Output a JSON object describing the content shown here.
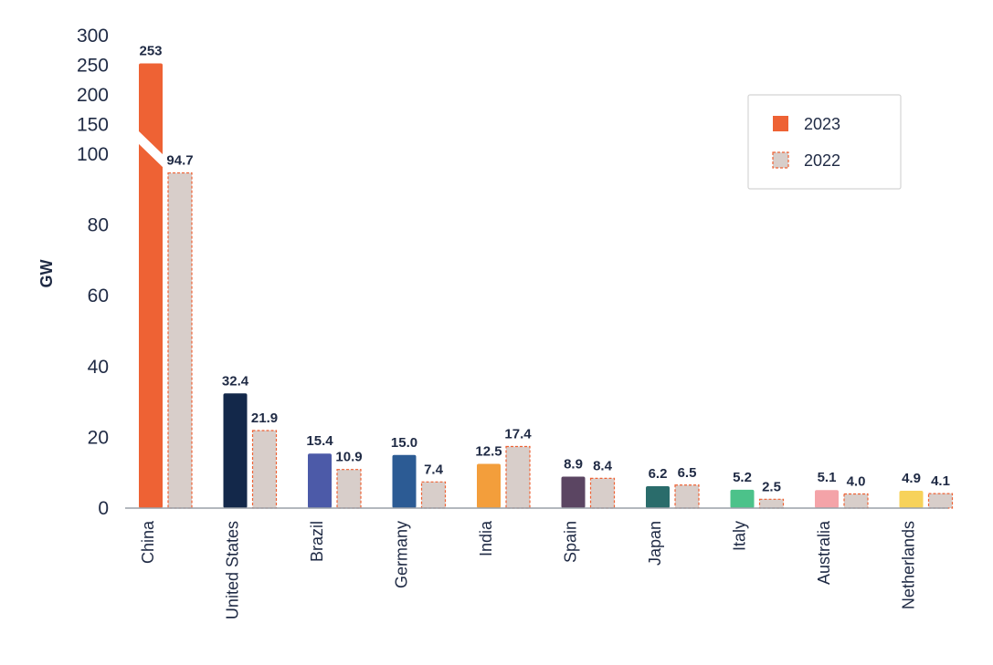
{
  "chart_data": {
    "type": "bar",
    "ylabel": "GW",
    "categories": [
      "China",
      "United States",
      "Brazil",
      "Germany",
      "India",
      "Spain",
      "Japan",
      "Italy",
      "Australia",
      "Netherlands"
    ],
    "series": [
      {
        "name": "2023",
        "values": [
          253,
          32.4,
          15.4,
          15.0,
          12.5,
          8.9,
          6.2,
          5.2,
          5.1,
          4.9
        ],
        "labels": [
          "253",
          "32.4",
          "15.4",
          "15.0",
          "12.5",
          "8.9",
          "6.2",
          "5.2",
          "5.1",
          "4.9"
        ],
        "colors": [
          "#ee6234",
          "#13284a",
          "#4c5aa8",
          "#2c5b94",
          "#f39e3b",
          "#5b4562",
          "#2a6c6b",
          "#4cc28a",
          "#f4a3a8",
          "#f7d25a"
        ]
      },
      {
        "name": "2022",
        "values": [
          94.7,
          21.9,
          10.9,
          7.4,
          17.4,
          8.4,
          6.5,
          2.5,
          4.0,
          4.1
        ],
        "labels": [
          "94.7",
          "21.9",
          "10.9",
          "7.4",
          "17.4",
          "8.4",
          "6.5",
          "2.5",
          "4.0",
          "4.1"
        ],
        "fill": "#d8ceca",
        "border": "#ee6234"
      }
    ],
    "ylim": [
      0,
      300
    ],
    "axis_break": {
      "from": 100,
      "to": 300
    },
    "yticks_lower": [
      "0",
      "20",
      "40",
      "60",
      "80",
      "100"
    ],
    "yticks_upper": [
      "150",
      "200",
      "250",
      "300"
    ],
    "legend": {
      "position": "top-right",
      "entries": [
        "2023",
        "2022"
      ]
    }
  }
}
